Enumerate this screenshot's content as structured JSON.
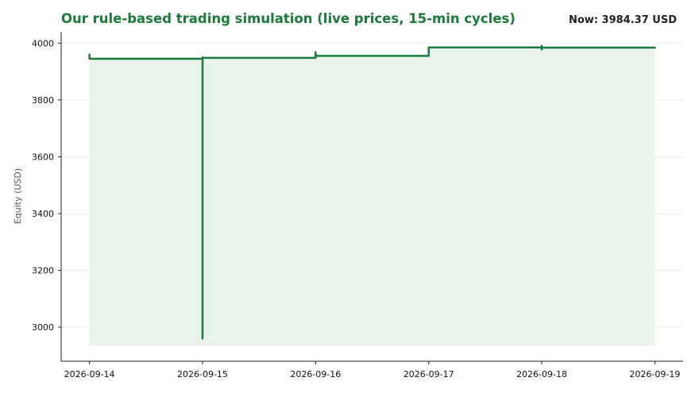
{
  "header": {
    "title": "Our rule-based trading simulation (live prices, 15-min cycles)",
    "now_label": "Now: 3984.37 USD"
  },
  "colors": {
    "accent": "#1a7a3a",
    "fill": "#e8f3eb",
    "grid": "#eeeeee",
    "axis": "#222222"
  },
  "chart_data": {
    "type": "line",
    "title": "Our rule-based trading simulation (live prices, 15-min cycles)",
    "xlabel": "",
    "ylabel": "Equity (USD)",
    "x_ticks": [
      "2026-09-14",
      "2026-09-15",
      "2026-09-16",
      "2026-09-17",
      "2026-09-18",
      "2026-09-19"
    ],
    "y_ticks": [
      3000,
      3200,
      3400,
      3600,
      3800,
      4000
    ],
    "xlim": [
      "2026-09-13 18:00",
      "2026-09-19 06:00"
    ],
    "ylim": [
      2880,
      4040
    ],
    "fill_baseline": 2935,
    "grid": "horizontal",
    "series": [
      {
        "values": [
          {
            "x": "2026-09-14 00:00",
            "y": 3960
          },
          {
            "x": "2026-09-14 00:00",
            "y": 3945
          },
          {
            "x": "2026-09-15 00:00",
            "y": 3945
          },
          {
            "x": "2026-09-15 00:00",
            "y": 3950
          },
          {
            "x": "2026-09-15 00:00",
            "y": 2960
          },
          {
            "x": "2026-09-15 00:00",
            "y": 3948
          },
          {
            "x": "2026-09-16 00:00",
            "y": 3948
          },
          {
            "x": "2026-09-16 00:00",
            "y": 3968
          },
          {
            "x": "2026-09-16 00:00",
            "y": 3955
          },
          {
            "x": "2026-09-17 00:00",
            "y": 3955
          },
          {
            "x": "2026-09-17 00:00",
            "y": 3985
          },
          {
            "x": "2026-09-18 00:00",
            "y": 3985
          },
          {
            "x": "2026-09-18 00:00",
            "y": 3978
          },
          {
            "x": "2026-09-18 00:00",
            "y": 3990
          },
          {
            "x": "2026-09-18 00:00",
            "y": 3984
          },
          {
            "x": "2026-09-19 00:00",
            "y": 3984
          }
        ]
      }
    ]
  }
}
